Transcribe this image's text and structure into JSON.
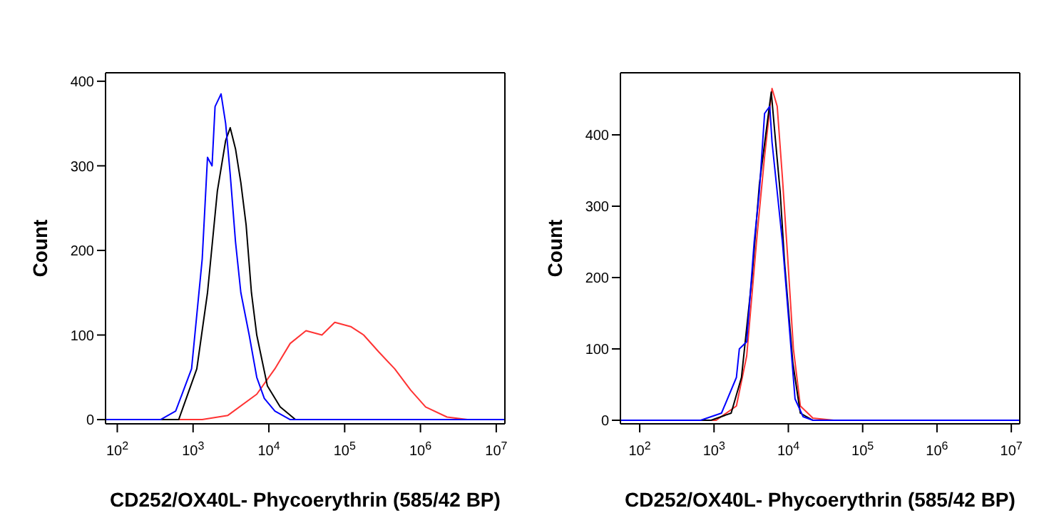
{
  "chart_data": [
    {
      "type": "line",
      "xlabel": "CD252/OX40L- Phycoerythrin  (585/42 BP)",
      "ylabel": "Count",
      "log": "x",
      "xlim": [
        70,
        13000000
      ],
      "xticks": [
        {
          "value": 100,
          "label": "10$^{2}$"
        },
        {
          "value": 1000,
          "label": "10$^{3}$"
        },
        {
          "value": 10000,
          "label": "10$^{4}$"
        },
        {
          "value": 100000,
          "label": "10$^{5}$"
        },
        {
          "value": 1000000,
          "label": "10$^{6}$"
        },
        {
          "value": 10000000,
          "label": "10$^{7}$"
        }
      ],
      "ylim": [
        -5,
        410
      ],
      "yticks": [
        0,
        100,
        200,
        300,
        400
      ],
      "series": [
        {
          "color": "#ff3333",
          "x": [
            70,
            1320,
            2880,
            6920,
            12000,
            19100,
            30900,
            50100,
            74100,
            120000,
            178000,
            282000,
            457000,
            741000,
            1170000,
            2240000,
            4170000,
            13000000
          ],
          "values": [
            0,
            0,
            5,
            30,
            60,
            90,
            105,
            100,
            115,
            110,
            100,
            80,
            60,
            35,
            15,
            3,
            0,
            0
          ]
        },
        {
          "color": "#000000",
          "x": [
            70,
            646,
            1120,
            1550,
            2090,
            2690,
            3090,
            3630,
            4270,
            5010,
            5890,
            6920,
            9550,
            14100,
            22400,
            13000000
          ],
          "values": [
            0,
            0,
            60,
            150,
            270,
            330,
            345,
            320,
            280,
            230,
            150,
            100,
            40,
            15,
            0,
            0
          ]
        },
        {
          "color": "#0000ff",
          "x": [
            70,
            372,
            589,
            955,
            1320,
            1550,
            1780,
            1950,
            2340,
            2690,
            3090,
            3630,
            4270,
            5500,
            6920,
            8710,
            12000,
            19100,
            13000000
          ],
          "values": [
            0,
            0,
            10,
            60,
            190,
            310,
            300,
            370,
            385,
            350,
            290,
            210,
            150,
            100,
            50,
            25,
            10,
            0,
            0
          ]
        }
      ]
    },
    {
      "type": "line",
      "xlabel": "CD252/OX40L- Phycoerythrin  (585/42 BP)",
      "ylabel": "Count",
      "log": "x",
      "xlim": [
        55,
        13000000
      ],
      "xticks": [
        {
          "value": 100,
          "label": "10$^{2}$"
        },
        {
          "value": 1000,
          "label": "10$^{3}$"
        },
        {
          "value": 10000,
          "label": "10$^{4}$"
        },
        {
          "value": 100000,
          "label": "10$^{5}$"
        },
        {
          "value": 1000000,
          "label": "10$^{6}$"
        },
        {
          "value": 10000000,
          "label": "10$^{7}$"
        }
      ],
      "ylim": [
        -5,
        487
      ],
      "yticks": [
        0,
        100,
        200,
        300,
        400
      ],
      "series": [
        {
          "color": "#ff3333",
          "x": [
            55,
            1070,
            2000,
            2750,
            3800,
            4790,
            6030,
            7080,
            8320,
            9770,
            11700,
            14500,
            21400,
            40700,
            13000000
          ],
          "values": [
            0,
            0,
            20,
            90,
            260,
            370,
            465,
            440,
            340,
            230,
            100,
            20,
            3,
            0,
            0
          ]
        },
        {
          "color": "#000000",
          "x": [
            55,
            912,
            1700,
            2340,
            3240,
            4070,
            5250,
            5890,
            6610,
            7760,
            8910,
            11500,
            14500,
            21400,
            13000000
          ],
          "values": [
            0,
            0,
            10,
            60,
            200,
            330,
            420,
            460,
            400,
            320,
            220,
            80,
            10,
            0,
            0
          ]
        },
        {
          "color": "#0000ff",
          "x": [
            55,
            661,
            1260,
            2000,
            2190,
            2750,
            3470,
            4070,
            4790,
            5620,
            6030,
            6920,
            8320,
            10500,
            12300,
            15800,
            21400,
            13000000
          ],
          "values": [
            0,
            0,
            10,
            60,
            100,
            110,
            250,
            320,
            430,
            440,
            390,
            330,
            250,
            120,
            30,
            5,
            0,
            0
          ]
        }
      ]
    }
  ]
}
